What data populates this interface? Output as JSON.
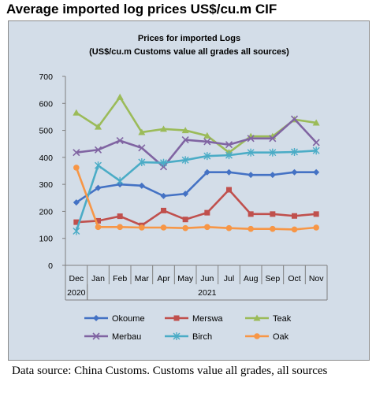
{
  "heading": "Average imported log prices US$/cu.m CIF",
  "source": "Data source: China Customs. Customs value all grades, all sources",
  "chart_data": {
    "type": "line",
    "title": "Prices for imported Logs",
    "subtitle": "(US$/cu.m Customs value all grades all sources)",
    "categories": [
      "Dec",
      "Jan",
      "Feb",
      "Mar",
      "Apr",
      "May",
      "Jun",
      "Jul",
      "Aug",
      "Sep",
      "Oct",
      "Nov"
    ],
    "year_groups": [
      {
        "label": "2020",
        "from": 0,
        "to": 0
      },
      {
        "label": "2021",
        "from": 1,
        "to": 11
      }
    ],
    "ylim": [
      0,
      700
    ],
    "yticks": [
      0,
      100,
      200,
      300,
      400,
      500,
      600,
      700
    ],
    "grid": false,
    "legend_position": "bottom",
    "series": [
      {
        "name": "Okoume",
        "color": "#4472c4",
        "marker": "diamond",
        "values": [
          233,
          287,
          300,
          295,
          257,
          265,
          345,
          345,
          335,
          335,
          345,
          345
        ]
      },
      {
        "name": "Merswa",
        "color": "#c0504d",
        "marker": "square",
        "values": [
          160,
          165,
          182,
          148,
          203,
          170,
          195,
          280,
          190,
          190,
          183,
          190
        ]
      },
      {
        "name": "Teak",
        "color": "#9bbb59",
        "marker": "triangle",
        "values": [
          565,
          513,
          623,
          493,
          505,
          500,
          480,
          418,
          478,
          478,
          540,
          528
        ]
      },
      {
        "name": "Merbau",
        "color": "#8064a2",
        "marker": "x",
        "values": [
          418,
          428,
          462,
          435,
          365,
          465,
          458,
          447,
          470,
          470,
          542,
          455
        ]
      },
      {
        "name": "Birch",
        "color": "#4bacc6",
        "marker": "star",
        "values": [
          127,
          370,
          313,
          382,
          380,
          390,
          405,
          408,
          418,
          418,
          420,
          425
        ]
      },
      {
        "name": "Oak",
        "color": "#f79646",
        "marker": "circle",
        "values": [
          362,
          142,
          142,
          140,
          140,
          138,
          142,
          138,
          135,
          135,
          133,
          140
        ]
      }
    ]
  }
}
